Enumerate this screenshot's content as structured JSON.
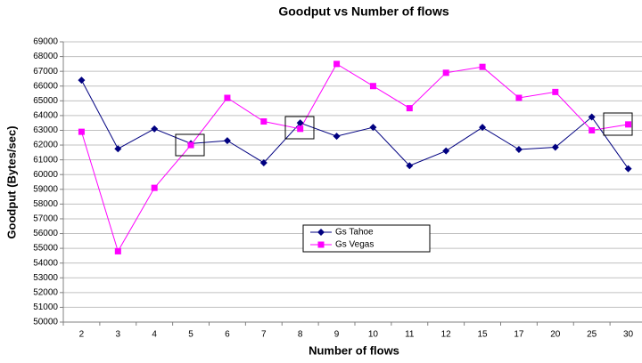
{
  "chart_data": {
    "type": "line",
    "title": "Goodput vs Number of flows",
    "x_label": "Number of flows",
    "y_label": "Goodput (Bytes/sec)",
    "categories": [
      "2",
      "3",
      "4",
      "5",
      "6",
      "7",
      "8",
      "9",
      "10",
      "11",
      "12",
      "15",
      "17",
      "20",
      "25",
      "30"
    ],
    "series": [
      {
        "name": "Gs Tahoe",
        "color": "#000080",
        "marker": "diamond",
        "values": [
          66400,
          61750,
          63100,
          62100,
          62300,
          60800,
          63500,
          62600,
          63200,
          60600,
          61600,
          63200,
          61700,
          61850,
          63900,
          60400
        ]
      },
      {
        "name": "Gs Vegas",
        "color": "#ff00ff",
        "marker": "square",
        "values": [
          62900,
          54800,
          59100,
          62000,
          65200,
          63600,
          63100,
          67500,
          66000,
          64500,
          66900,
          67300,
          65200,
          65600,
          63000,
          63400
        ]
      }
    ],
    "ylim": [
      50000,
      69000
    ],
    "yticks": [
      50000,
      51000,
      52000,
      53000,
      54000,
      55000,
      56000,
      57000,
      58000,
      59000,
      60000,
      61000,
      62000,
      63000,
      64000,
      65000,
      66000,
      67000,
      68000,
      69000
    ],
    "grid": true,
    "legend": "center"
  }
}
